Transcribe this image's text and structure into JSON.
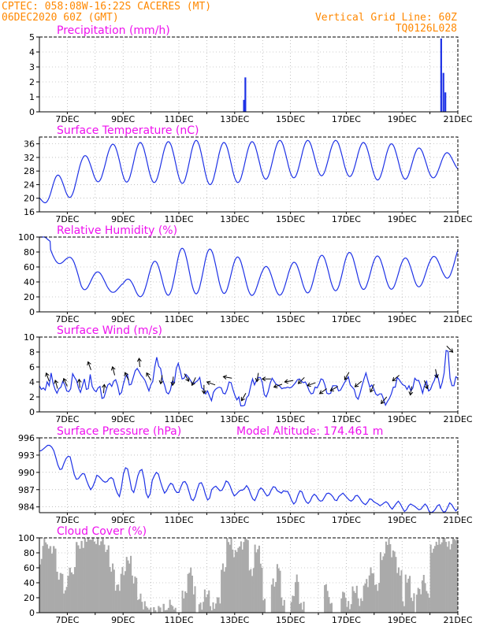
{
  "header": {
    "line1": "CPTEC:   058:08W-16:22S   CACERES (MT)",
    "line2": "06DEC2020 60Z (GMT)",
    "grid_note": "Vertical Grid Line: 60Z",
    "run_id": "TQ0126L028"
  },
  "colors": {
    "header_orange": "#ff8800",
    "panel_title_magenta": "#ee11ee",
    "series_blue": "#1e32e6",
    "cloud_gray": "#aaaaaa",
    "grid_gray": "#999999"
  },
  "x_axis": {
    "start_day": 6,
    "end_day": 21,
    "tick_days": [
      7,
      9,
      11,
      13,
      15,
      17,
      19,
      21
    ],
    "tick_labels": [
      "7DEC",
      "9DEC",
      "11DEC",
      "13DEC",
      "15DEC",
      "17DEC",
      "19DEC",
      "21DEC"
    ]
  },
  "chart_data": [
    {
      "type": "bar",
      "title": "Precipitation (mm/h)",
      "ylim": [
        0,
        5
      ],
      "y_ticks": [
        0,
        1,
        2,
        3,
        4,
        5
      ],
      "bars": [
        {
          "day": 13.33,
          "value": 0.8
        },
        {
          "day": 13.38,
          "value": 2.3
        },
        {
          "day": 20.4,
          "value": 4.9
        },
        {
          "day": 20.48,
          "value": 2.6
        },
        {
          "day": 20.55,
          "value": 1.3
        }
      ]
    },
    {
      "type": "line",
      "title": "Surface Temperature (nC)",
      "ylim": [
        16,
        38
      ],
      "y_ticks": [
        16,
        20,
        24,
        28,
        32,
        36
      ],
      "amplitude_by_day": [
        [
          6.0,
          21
        ],
        [
          7.0,
          30
        ],
        [
          8.0,
          34
        ],
        [
          9.0,
          37
        ],
        [
          10.0,
          36
        ],
        [
          11.0,
          37
        ],
        [
          12.0,
          37
        ],
        [
          13.0,
          36
        ],
        [
          14.0,
          37
        ],
        [
          15.0,
          37
        ],
        [
          16.0,
          37
        ],
        [
          17.0,
          37
        ],
        [
          18.0,
          36
        ],
        [
          19.0,
          36
        ],
        [
          20.0,
          34
        ],
        [
          21.0,
          33
        ]
      ],
      "trough_by_day": [
        [
          6.0,
          20
        ],
        [
          6.5,
          16
        ],
        [
          7.5,
          23
        ],
        [
          8.5,
          26
        ],
        [
          9.5,
          24
        ],
        [
          10.5,
          25
        ],
        [
          11.5,
          24
        ],
        [
          12.5,
          24
        ],
        [
          13.5,
          25
        ],
        [
          14.5,
          26
        ],
        [
          15.5,
          26
        ],
        [
          16.5,
          27
        ],
        [
          17.5,
          26
        ],
        [
          18.5,
          25
        ],
        [
          19.5,
          26
        ],
        [
          20.5,
          26
        ],
        [
          21.0,
          28
        ]
      ]
    },
    {
      "type": "line",
      "title": "Relative Humidity (%)",
      "ylim": [
        0,
        100
      ],
      "y_ticks": [
        0,
        20,
        40,
        60,
        80,
        100
      ],
      "peak_by_day": [
        [
          6.0,
          100
        ],
        [
          6.2,
          100
        ],
        [
          7.0,
          75
        ],
        [
          8.0,
          55
        ],
        [
          9.0,
          40
        ],
        [
          10.0,
          65
        ],
        [
          11.0,
          85
        ],
        [
          12.0,
          85
        ],
        [
          13.0,
          75
        ],
        [
          14.0,
          60
        ],
        [
          15.0,
          65
        ],
        [
          16.0,
          75
        ],
        [
          17.0,
          80
        ],
        [
          18.0,
          75
        ],
        [
          19.0,
          72
        ],
        [
          20.0,
          72
        ],
        [
          21.0,
          88
        ]
      ],
      "trough_by_day": [
        [
          6.3,
          80
        ],
        [
          7.5,
          30
        ],
        [
          8.5,
          27
        ],
        [
          9.5,
          20
        ],
        [
          10.5,
          22
        ],
        [
          11.5,
          24
        ],
        [
          12.5,
          25
        ],
        [
          13.5,
          22
        ],
        [
          14.5,
          22
        ],
        [
          15.5,
          25
        ],
        [
          16.5,
          28
        ],
        [
          17.5,
          30
        ],
        [
          18.5,
          30
        ],
        [
          19.5,
          32
        ],
        [
          20.5,
          45
        ]
      ]
    },
    {
      "type": "line",
      "title": "Surface Wind (m/s)",
      "ylim": [
        0,
        10
      ],
      "y_ticks": [
        0,
        2,
        4,
        6,
        8,
        10
      ],
      "values": [
        3.5,
        3,
        3.2,
        2.9,
        4,
        3.5,
        5.2,
        3.8,
        3,
        2.5,
        3.1,
        3.3,
        4.1,
        3.6,
        2.8,
        2.7,
        3.1,
        5.1,
        4.6,
        4.2,
        3.2,
        2.6,
        3.5,
        4.4,
        3,
        3.1,
        5,
        3.4,
        2.9,
        2.7,
        3.2,
        3.4,
        1.8,
        1.9,
        2.8,
        3.6,
        3.8,
        3.4,
        4.1,
        4.3,
        3.5,
        2.3,
        2.6,
        3.8,
        4.7,
        5,
        3.6,
        3.7,
        4.6,
        5.5,
        5.8,
        5.4,
        4.9,
        4.6,
        4.2,
        3.5,
        2.8,
        3.6,
        4.1,
        6,
        7.3,
        6.1,
        5.8,
        4.3,
        3.6,
        2.6,
        2.4,
        2.9,
        4.1,
        3.9,
        5.8,
        6.5,
        5.5,
        4.4,
        4.5,
        5,
        4.7,
        4.3,
        3.9,
        3.8,
        4,
        4.2,
        4.6,
        3.2,
        3,
        2.4,
        2.8,
        2.1,
        1.5,
        2.6,
        3,
        3.2,
        3.3,
        3.2,
        2.5,
        2.4,
        3,
        4,
        3.9,
        3,
        2.2,
        1.6,
        2,
        0.8,
        0.8,
        0.9,
        1.9,
        2.2,
        3.4,
        4.4,
        3.6,
        4.2,
        4.6,
        4.6,
        3.9,
        2.3,
        2,
        2.7,
        3.8,
        4.5,
        4.1,
        3.7,
        3.6,
        3.4,
        3.1,
        3.2,
        3.2,
        3.3,
        3.2,
        3.3,
        3.6,
        3.9,
        4.3,
        4.4,
        4.1,
        3.9,
        4,
        3.5,
        2.8,
        2.4,
        2.5,
        3.3,
        3.2,
        3.7,
        4.4,
        4.3,
        3.6,
        2.5,
        2.4,
        2.5,
        3.5,
        3.5,
        3.5,
        2.8,
        2.9,
        3.4,
        3.9,
        4.3,
        4.7,
        3.6,
        3.3,
        3,
        2,
        1.7,
        2.5,
        3.5,
        4.4,
        5.2,
        4.2,
        3.3,
        3.6,
        3.1,
        2.4,
        2.2,
        2.4,
        2.4,
        1.7,
        0.9,
        1.4,
        1.8,
        2.4,
        3.3,
        3.3,
        4.6,
        4.3,
        3.9,
        3.6,
        3.5,
        3,
        3.5,
        2.8,
        3.2,
        4.5,
        4.2,
        4.2,
        3.4,
        2.5,
        3.6,
        4.1,
        2.8,
        3,
        3.7,
        4.2,
        5.1,
        4.5,
        3.1,
        3.9,
        5.2,
        8.2,
        8.1,
        4.5,
        3.5,
        3.5,
        4.7,
        4.5
      ],
      "wind_arrows": [
        {
          "day": 6.35,
          "angle": 250
        },
        {
          "day": 6.65,
          "angle": 255
        },
        {
          "day": 7.0,
          "angle": 245
        },
        {
          "day": 7.45,
          "angle": 265
        },
        {
          "day": 7.85,
          "angle": 250
        },
        {
          "day": 8.3,
          "angle": 275
        },
        {
          "day": 8.7,
          "angle": 255
        },
        {
          "day": 9.2,
          "angle": 245
        },
        {
          "day": 9.6,
          "angle": 265
        },
        {
          "day": 10.0,
          "angle": 240
        },
        {
          "day": 10.4,
          "angle": 100
        },
        {
          "day": 10.8,
          "angle": 95
        },
        {
          "day": 11.2,
          "angle": 60
        },
        {
          "day": 11.6,
          "angle": 115
        },
        {
          "day": 11.9,
          "angle": 90
        },
        {
          "day": 12.3,
          "angle": 200
        },
        {
          "day": 12.9,
          "angle": 190
        },
        {
          "day": 13.4,
          "angle": 120
        },
        {
          "day": 13.85,
          "angle": 100
        },
        {
          "day": 14.3,
          "angle": 180
        },
        {
          "day": 14.7,
          "angle": 160
        },
        {
          "day": 15.1,
          "angle": 170
        },
        {
          "day": 15.5,
          "angle": 135
        },
        {
          "day": 15.9,
          "angle": 160
        },
        {
          "day": 16.3,
          "angle": 145
        },
        {
          "day": 16.7,
          "angle": 150
        },
        {
          "day": 17.1,
          "angle": 120
        },
        {
          "day": 17.55,
          "angle": 140
        },
        {
          "day": 18.0,
          "angle": 115
        },
        {
          "day": 18.45,
          "angle": 130
        },
        {
          "day": 18.9,
          "angle": 140
        },
        {
          "day": 19.35,
          "angle": 100
        },
        {
          "day": 19.8,
          "angle": 70
        },
        {
          "day": 20.2,
          "angle": 80
        },
        {
          "day": 20.6,
          "angle": 45
        }
      ]
    },
    {
      "type": "line",
      "title": "Surface Pressure (hPa)",
      "subtitle": "Model Altitude: 174.461 m",
      "ylim": [
        983,
        996
      ],
      "y_ticks": [
        984,
        987,
        990,
        993,
        996
      ],
      "values": [
        993.7,
        993.8,
        994.1,
        994.4,
        994.7,
        994.7,
        994.4,
        993.8,
        992.6,
        991.3,
        990.5,
        990.6,
        991.6,
        992.4,
        992.8,
        992.7,
        991.2,
        989.6,
        988.8,
        988.9,
        989.4,
        989.8,
        989.7,
        988.6,
        987.7,
        987,
        987.5,
        988.4,
        989.5,
        989.3,
        988.9,
        988.5,
        988.3,
        988.4,
        988.9,
        989.1,
        988.8,
        987.4,
        986.4,
        985.8,
        987.4,
        989.8,
        990.8,
        990.6,
        988.9,
        987,
        986.5,
        987.8,
        989.4,
        990.3,
        990.5,
        988.9,
        986.4,
        985.6,
        986.3,
        988.6,
        989.4,
        990,
        989.7,
        988.4,
        987.3,
        986.4,
        986.8,
        987.6,
        988.1,
        987.9,
        987,
        986.5,
        986.5,
        987.5,
        988.3,
        988.4,
        987.8,
        986.6,
        985.4,
        985.1,
        985.8,
        987.1,
        988.1,
        988.2,
        987.4,
        986.1,
        985.2,
        985.5,
        987,
        987.4,
        987.6,
        987.2,
        986.8,
        986.9,
        987.6,
        988.5,
        988.3,
        987.6,
        986.6,
        985.9,
        986.2,
        986.6,
        986.9,
        986.9,
        987.2,
        987.7,
        987.2,
        986.2,
        985.4,
        985.1,
        985.9,
        986.9,
        987.3,
        987,
        986.4,
        985.9,
        986.1,
        986.9,
        987.5,
        987.4,
        986.8,
        986.6,
        986.4,
        986.8,
        986.7,
        986.7,
        986,
        985.1,
        984.5,
        984.9,
        986,
        986.8,
        986.6,
        985.6,
        984.9,
        984.6,
        985,
        985.8,
        986.2,
        985.9,
        985.3,
        985,
        985.1,
        985.7,
        986.3,
        986.4,
        986.2,
        985.8,
        985.2,
        985.1,
        985.8,
        986.1,
        986.4,
        986,
        985.6,
        985.2,
        985,
        985.3,
        985.9,
        986,
        985.6,
        985,
        984.6,
        984.4,
        984.8,
        985.4,
        985.3,
        984.9,
        984.7,
        984.5,
        984.2,
        984.4,
        984.7,
        984.9,
        984.6,
        984,
        983.6,
        984.1,
        984.6,
        985,
        984.5,
        983.8,
        983.2,
        983.5,
        984.2,
        984.5,
        984.3,
        984.1,
        983.8,
        983.5,
        983.6,
        984.1,
        984.5,
        984.1,
        983.2,
        983,
        983.2,
        983.6,
        984.2,
        984.4,
        983.6,
        983.1,
        983.2,
        983.9,
        984.7,
        984.4,
        983.8,
        983.3,
        983.7
      ]
    },
    {
      "type": "bar",
      "title": "Cloud Cover (%)",
      "ylim": [
        0,
        100
      ],
      "y_ticks": [
        0,
        20,
        40,
        60,
        80,
        100
      ],
      "segments": [
        [
          6.0,
          6.1,
          70
        ],
        [
          6.1,
          6.3,
          95
        ],
        [
          6.3,
          6.6,
          85
        ],
        [
          6.6,
          6.85,
          50
        ],
        [
          6.85,
          7.0,
          30
        ],
        [
          7.0,
          7.3,
          55
        ],
        [
          7.3,
          7.6,
          90
        ],
        [
          7.6,
          8.0,
          100
        ],
        [
          8.0,
          8.3,
          95
        ],
        [
          8.3,
          8.5,
          85
        ],
        [
          8.5,
          8.7,
          60
        ],
        [
          8.7,
          8.9,
          35
        ],
        [
          8.9,
          9.1,
          55
        ],
        [
          9.1,
          9.3,
          70
        ],
        [
          9.3,
          9.5,
          45
        ],
        [
          9.5,
          9.7,
          20
        ],
        [
          9.7,
          9.9,
          10
        ],
        [
          9.9,
          10.3,
          3
        ],
        [
          10.3,
          10.6,
          6
        ],
        [
          10.6,
          10.8,
          12
        ],
        [
          10.8,
          10.95,
          3
        ],
        [
          11.1,
          11.3,
          25
        ],
        [
          11.3,
          11.5,
          55
        ],
        [
          11.5,
          11.6,
          30
        ],
        [
          11.7,
          11.9,
          10
        ],
        [
          11.9,
          12.1,
          25
        ],
        [
          12.1,
          12.3,
          8
        ],
        [
          12.3,
          12.5,
          18
        ],
        [
          12.5,
          12.7,
          60
        ],
        [
          12.7,
          12.9,
          95
        ],
        [
          12.9,
          13.1,
          80
        ],
        [
          13.1,
          13.3,
          90
        ],
        [
          13.3,
          13.5,
          100
        ],
        [
          13.5,
          13.7,
          55
        ],
        [
          13.7,
          13.9,
          85
        ],
        [
          13.9,
          14.0,
          65
        ],
        [
          14.0,
          14.1,
          20
        ],
        [
          14.3,
          14.5,
          40
        ],
        [
          14.5,
          14.65,
          60
        ],
        [
          14.65,
          14.8,
          15
        ],
        [
          15.0,
          15.15,
          20
        ],
        [
          15.15,
          15.3,
          45
        ],
        [
          15.3,
          15.5,
          10
        ],
        [
          16.2,
          16.35,
          35
        ],
        [
          16.35,
          16.5,
          15
        ],
        [
          16.8,
          17.0,
          25
        ],
        [
          17.0,
          17.2,
          10
        ],
        [
          17.2,
          17.4,
          30
        ],
        [
          17.4,
          17.6,
          15
        ],
        [
          17.6,
          17.8,
          40
        ],
        [
          17.8,
          18.0,
          55
        ],
        [
          18.0,
          18.2,
          35
        ],
        [
          18.2,
          18.4,
          75
        ],
        [
          18.4,
          18.6,
          95
        ],
        [
          18.6,
          18.8,
          80
        ],
        [
          18.8,
          19.0,
          55
        ],
        [
          19.0,
          19.1,
          10
        ],
        [
          19.1,
          19.3,
          45
        ],
        [
          19.3,
          19.45,
          20
        ],
        [
          19.5,
          19.7,
          30
        ],
        [
          19.7,
          19.85,
          45
        ],
        [
          19.85,
          20.0,
          25
        ],
        [
          20.0,
          20.2,
          85
        ],
        [
          20.2,
          20.4,
          95
        ],
        [
          20.4,
          20.6,
          100
        ],
        [
          20.6,
          20.8,
          90
        ],
        [
          20.8,
          21.0,
          100
        ]
      ]
    }
  ]
}
